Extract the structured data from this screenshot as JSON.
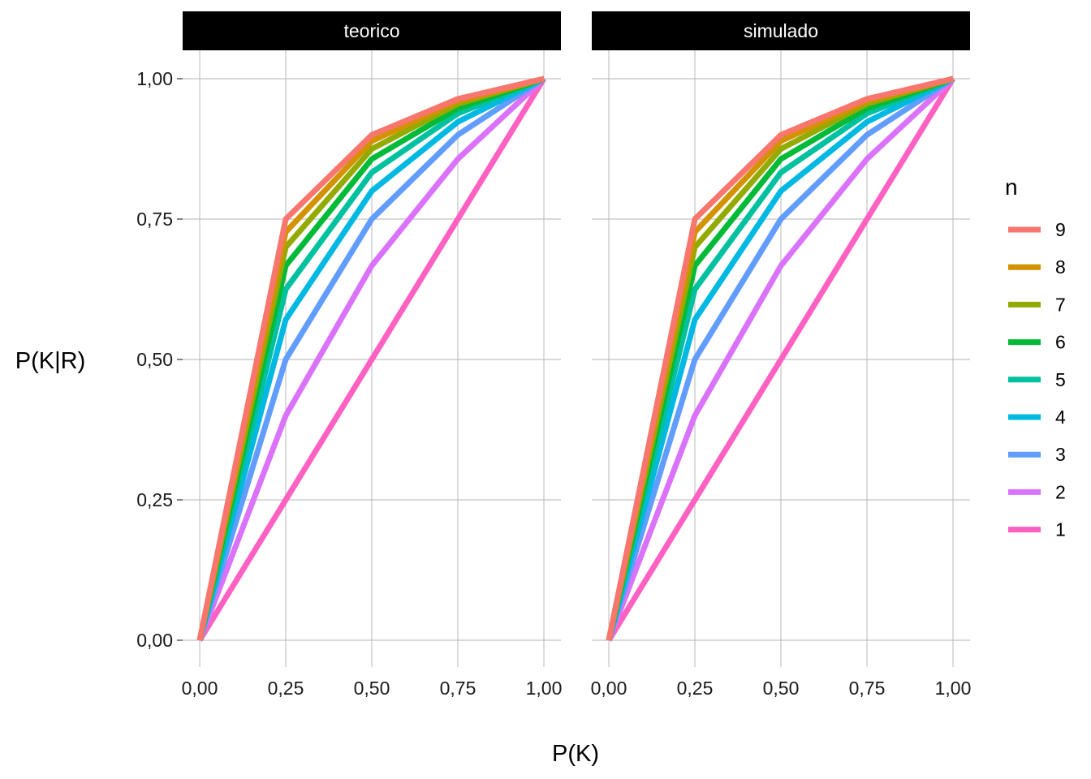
{
  "chart_data": {
    "type": "line",
    "xlabel": "P(K)",
    "ylabel": "P(K|R)",
    "xlim": [
      0,
      1
    ],
    "ylim": [
      0,
      1
    ],
    "x_ticks": [
      "0,00",
      "0,25",
      "0,50",
      "0,75",
      "1,00"
    ],
    "y_ticks": [
      "0,00",
      "0,25",
      "0,50",
      "0,75",
      "1,00"
    ],
    "grid": true,
    "legend": {
      "title": "n",
      "placement": "right"
    },
    "x": [
      0,
      0.25,
      0.5,
      0.75,
      1
    ],
    "panels": [
      {
        "title": "teorico",
        "series": [
          {
            "name": "1",
            "color": "#FF61C3",
            "values": [
              0,
              0.25,
              0.5,
              0.75,
              1
            ]
          },
          {
            "name": "2",
            "color": "#DB72FB",
            "values": [
              0,
              0.4,
              0.667,
              0.857,
              1
            ]
          },
          {
            "name": "3",
            "color": "#619CFF",
            "values": [
              0,
              0.5,
              0.75,
              0.9,
              1
            ]
          },
          {
            "name": "4",
            "color": "#00B9E3",
            "values": [
              0,
              0.571,
              0.8,
              0.923,
              1
            ]
          },
          {
            "name": "5",
            "color": "#00C19F",
            "values": [
              0,
              0.625,
              0.833,
              0.938,
              1
            ]
          },
          {
            "name": "6",
            "color": "#00BA38",
            "values": [
              0,
              0.667,
              0.857,
              0.947,
              1
            ]
          },
          {
            "name": "7",
            "color": "#93AA00",
            "values": [
              0,
              0.7,
              0.875,
              0.955,
              1
            ]
          },
          {
            "name": "8",
            "color": "#D39200",
            "values": [
              0,
              0.727,
              0.889,
              0.96,
              1
            ]
          },
          {
            "name": "9",
            "color": "#F8766D",
            "values": [
              0,
              0.75,
              0.9,
              0.964,
              1
            ]
          }
        ]
      },
      {
        "title": "simulado",
        "series": [
          {
            "name": "1",
            "color": "#FF61C3",
            "values": [
              0,
              0.25,
              0.5,
              0.75,
              1
            ]
          },
          {
            "name": "2",
            "color": "#DB72FB",
            "values": [
              0,
              0.4,
              0.667,
              0.857,
              1
            ]
          },
          {
            "name": "3",
            "color": "#619CFF",
            "values": [
              0,
              0.5,
              0.75,
              0.9,
              1
            ]
          },
          {
            "name": "4",
            "color": "#00B9E3",
            "values": [
              0,
              0.571,
              0.8,
              0.923,
              1
            ]
          },
          {
            "name": "5",
            "color": "#00C19F",
            "values": [
              0,
              0.625,
              0.833,
              0.938,
              1
            ]
          },
          {
            "name": "6",
            "color": "#00BA38",
            "values": [
              0,
              0.667,
              0.857,
              0.947,
              1
            ]
          },
          {
            "name": "7",
            "color": "#93AA00",
            "values": [
              0,
              0.7,
              0.875,
              0.955,
              1
            ]
          },
          {
            "name": "8",
            "color": "#D39200",
            "values": [
              0,
              0.727,
              0.889,
              0.96,
              1
            ]
          },
          {
            "name": "9",
            "color": "#F8766D",
            "values": [
              0,
              0.75,
              0.9,
              0.964,
              1
            ]
          }
        ]
      }
    ]
  }
}
